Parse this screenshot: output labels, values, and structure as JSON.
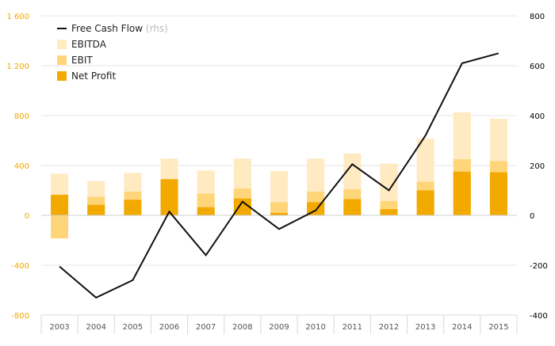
{
  "chart_data": {
    "type": "bar",
    "categories": [
      "2003",
      "2004",
      "2005",
      "2006",
      "2007",
      "2008",
      "2009",
      "2010",
      "2011",
      "2012",
      "2013",
      "2014",
      "2015"
    ],
    "series": [
      {
        "name": "EBITDA",
        "kind": "bar",
        "axis": "left",
        "color": "#ffeac2",
        "values": [
          335,
          275,
          340,
          455,
          360,
          455,
          355,
          455,
          495,
          415,
          615,
          825,
          775
        ]
      },
      {
        "name": "EBIT",
        "kind": "bar",
        "axis": "left",
        "color": "#ffd57a",
        "values": [
          -185,
          150,
          190,
          290,
          175,
          215,
          105,
          190,
          210,
          115,
          270,
          450,
          435
        ]
      },
      {
        "name": "Net Profit",
        "kind": "bar",
        "axis": "left",
        "color": "#f2a900",
        "values": [
          165,
          85,
          125,
          290,
          65,
          135,
          20,
          105,
          130,
          50,
          200,
          350,
          345
        ]
      },
      {
        "name": "Free Cash Flow",
        "name_suffix": "(rhs)",
        "kind": "line",
        "axis": "right",
        "color": "#111111",
        "values": [
          -205,
          -330,
          -260,
          15,
          -160,
          55,
          -55,
          20,
          205,
          100,
          320,
          610,
          650
        ]
      }
    ],
    "y_left": {
      "ylim": [
        -800,
        1600
      ],
      "ticks": [
        "-800",
        "-400",
        "0",
        "400",
        "800",
        "1 200",
        "1 600"
      ],
      "tick_values": [
        -800,
        -400,
        0,
        400,
        800,
        1200,
        1600
      ],
      "color": "#f2a900"
    },
    "y_right": {
      "ylim": [
        -400,
        800
      ],
      "ticks": [
        "-400",
        "-200",
        "0",
        "200",
        "400",
        "600",
        "800"
      ],
      "tick_values": [
        -400,
        -200,
        0,
        200,
        400,
        600,
        800
      ],
      "color": "#000000"
    },
    "grid": true,
    "legend_position": "top-left",
    "legend_order": [
      "Free Cash Flow",
      "EBITDA",
      "EBIT",
      "Net Profit"
    ]
  }
}
